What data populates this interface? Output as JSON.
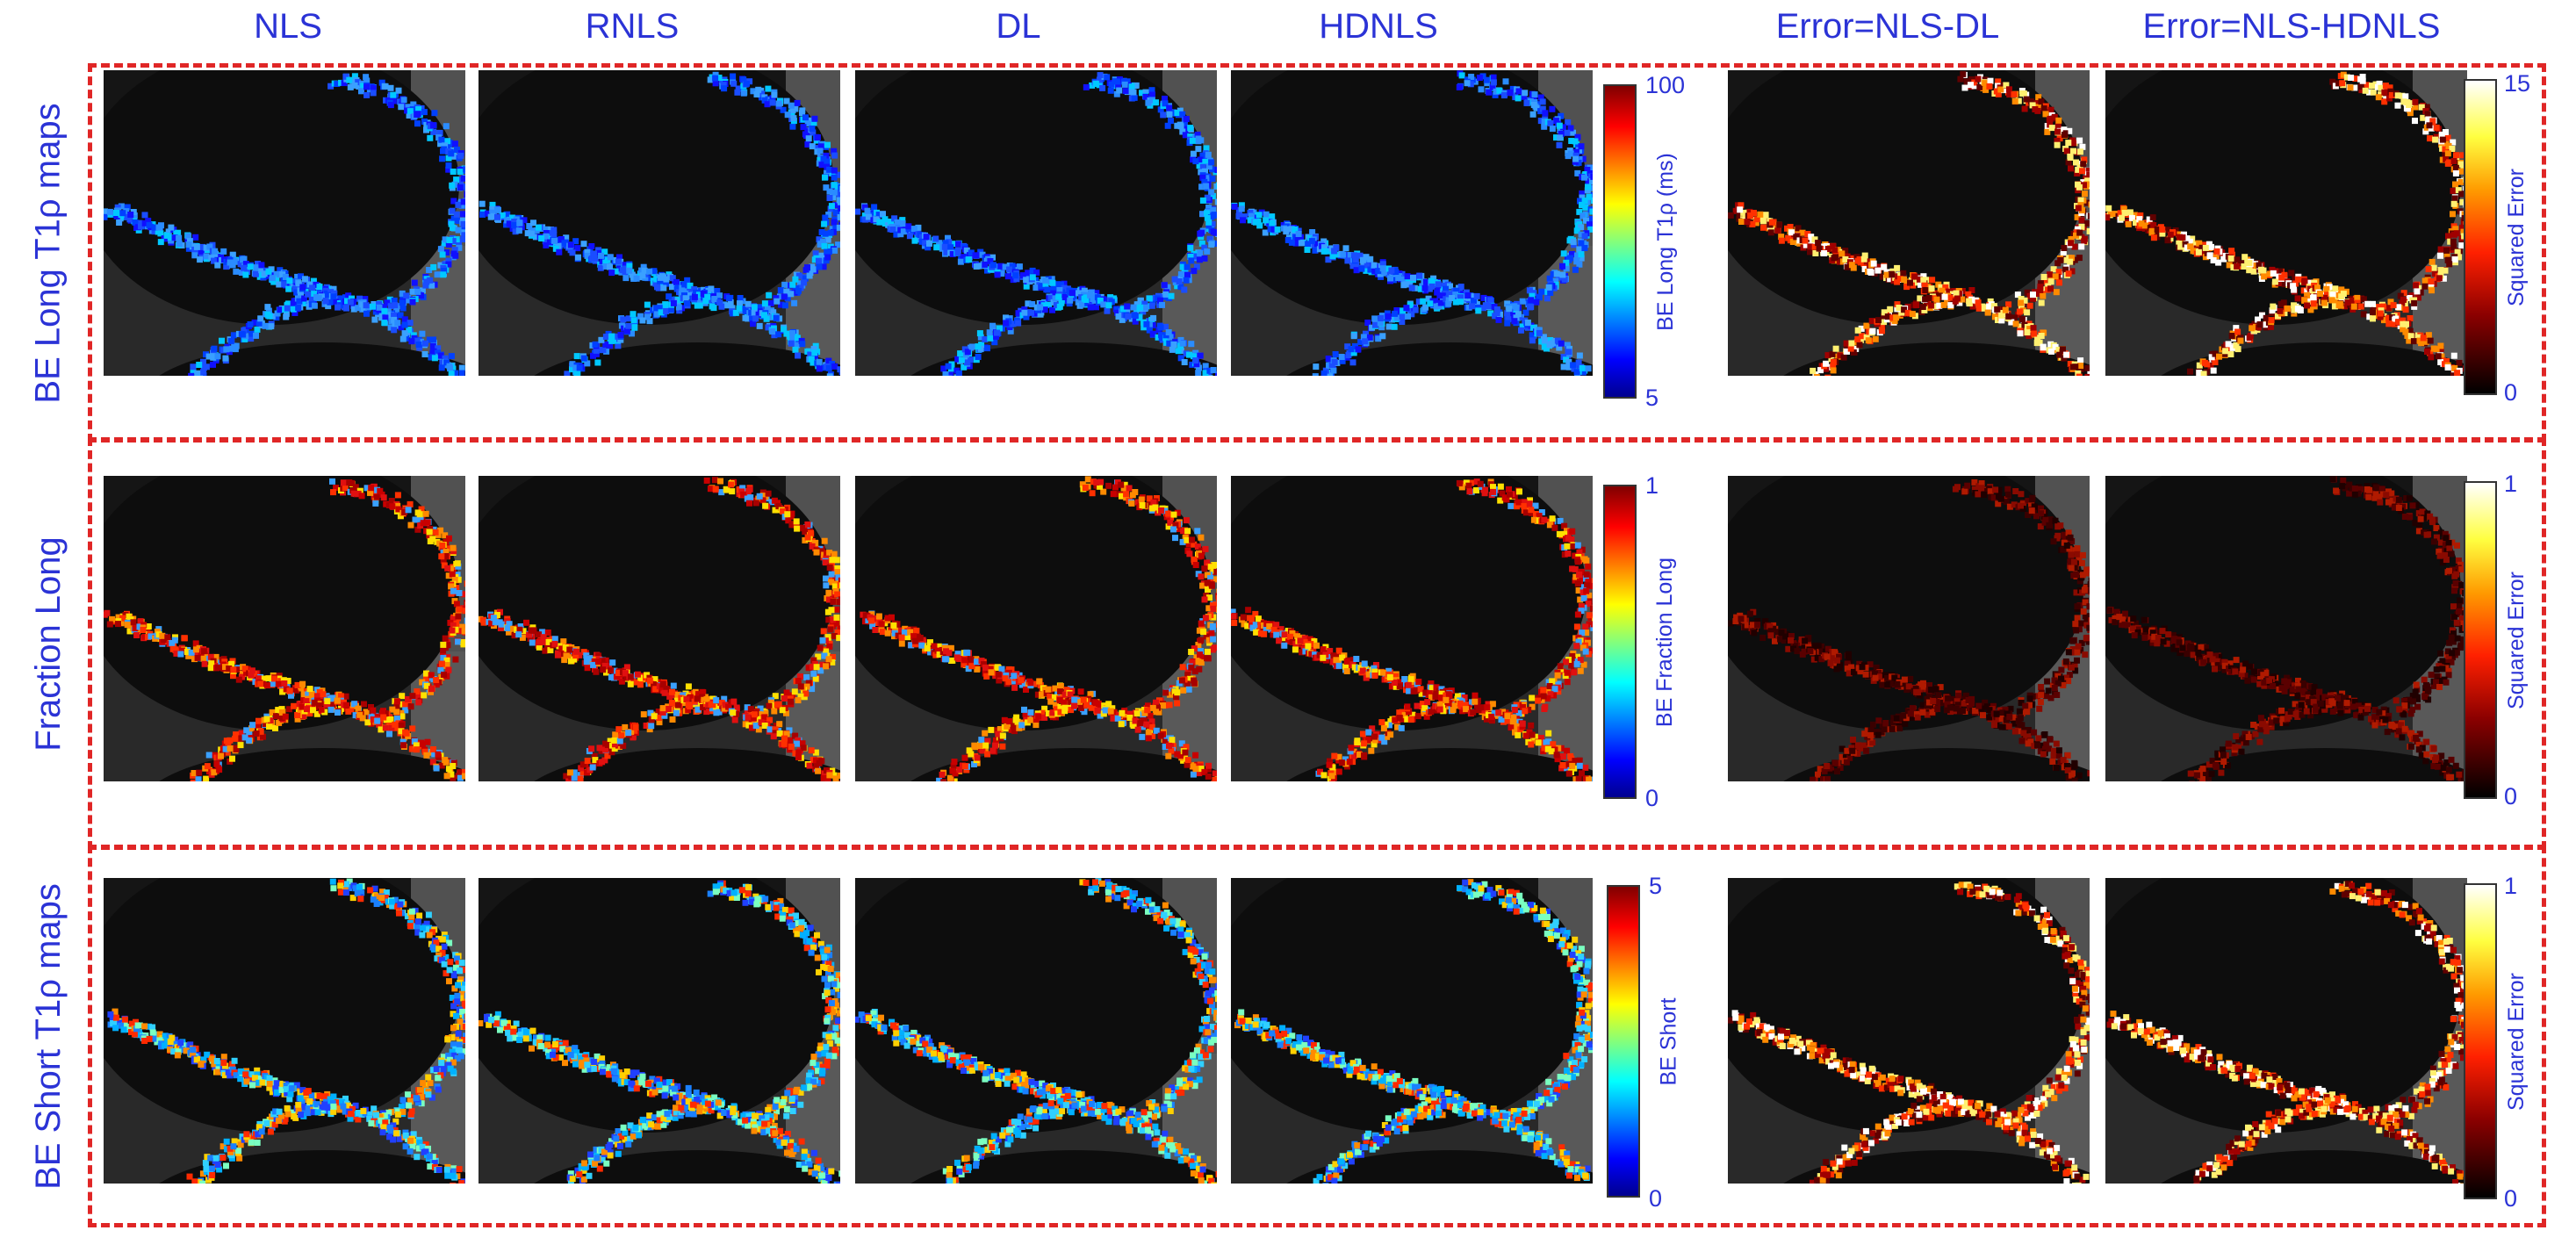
{
  "column_titles": [
    "NLS",
    "RNLS",
    "DL",
    "HDNLS",
    "Error=NLS-DL",
    "Error=NLS-HDNLS"
  ],
  "rows": [
    {
      "label": "BE Long  T1ρ maps",
      "colorbar": {
        "label": "BE Long T1ρ (ms)",
        "max": "100",
        "min": "5",
        "colormap": "jet"
      },
      "error_colorbar": {
        "label": "Squared Error",
        "max": "15",
        "min": "0",
        "colormap": "hot"
      },
      "tone": "blue"
    },
    {
      "label": "Fraction Long",
      "colorbar": {
        "label": "BE Fraction Long",
        "max": "1",
        "min": "0",
        "colormap": "jet"
      },
      "error_colorbar": {
        "label": "Squared Error",
        "max": "1",
        "min": "0",
        "colormap": "hot"
      },
      "tone": "red"
    },
    {
      "label": "BE Short T1ρ maps",
      "colorbar": {
        "label": "BE Short",
        "max": "5",
        "min": "0",
        "colormap": "jet"
      },
      "error_colorbar": {
        "label": "Squared Error",
        "max": "1",
        "min": "0",
        "colormap": "hot"
      },
      "tone": "mixed"
    }
  ],
  "colors": {
    "text": "#2b33d6",
    "dashed_border": "#e02626"
  }
}
